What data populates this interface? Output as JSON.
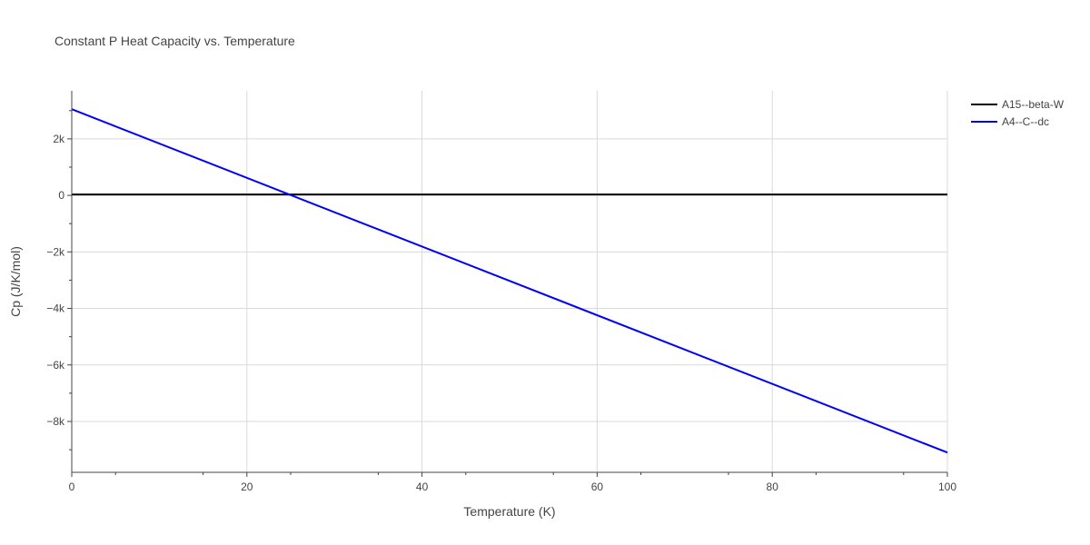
{
  "chart_data": {
    "type": "line",
    "title": "Constant P Heat Capacity vs. Temperature",
    "xlabel": "Temperature (K)",
    "ylabel": "Cp (J/K/mol)",
    "xlim": [
      0,
      100
    ],
    "ylim": [
      -9800,
      3700
    ],
    "x_ticks": [
      0,
      20,
      40,
      60,
      80,
      100
    ],
    "x_tick_labels": [
      "0",
      "20",
      "40",
      "60",
      "80",
      "100"
    ],
    "y_ticks": [
      2000,
      0,
      -2000,
      -4000,
      -6000,
      -8000
    ],
    "y_tick_labels": [
      "2k",
      "0",
      "−2k",
      "−4k",
      "−6k",
      "−8k"
    ],
    "grid": true,
    "legend_position": "top-right",
    "series": [
      {
        "name": "A15--beta-W",
        "color": "#000000",
        "x": [
          0,
          100
        ],
        "y": [
          30,
          30
        ]
      },
      {
        "name": "A4--C--dc",
        "color": "#0000ff",
        "x": [
          0,
          100
        ],
        "y": [
          3050,
          -9100
        ]
      }
    ]
  }
}
